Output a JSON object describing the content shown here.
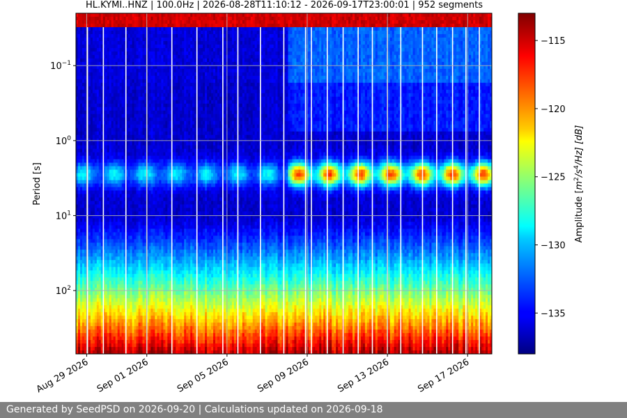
{
  "chart_data": {
    "type": "heatmap",
    "title": "HL.KYMI..HNZ | 100.0Hz | 2026-08-28T11:10:12 - 2026-09-17T23:00:01 | 952 segments",
    "ylabel": "Period [s]",
    "colorbar_label": "Amplitude [m²/s⁴/Hz] [dB]",
    "colorbar_label_parts": {
      "prefix": "Amplitude [",
      "m": "m",
      "sup2": "2",
      "s": "/s",
      "sup4": "4",
      "rest": "/Hz] [dB]"
    },
    "y_scale": "log",
    "y_inverted": true,
    "y_range": [
      0.02,
      700
    ],
    "y_ticks": [
      {
        "value": 0.1,
        "base": "10",
        "exp": "−1"
      },
      {
        "value": 1,
        "base": "10",
        "exp": "0"
      },
      {
        "value": 10,
        "base": "10",
        "exp": "1"
      },
      {
        "value": 100,
        "base": "10",
        "exp": "2"
      }
    ],
    "x_range": [
      "2026-08-28T11:10:12",
      "2026-09-18T05:00:00"
    ],
    "x_ticks": [
      {
        "date": "2026-08-29T00:00:00",
        "label": "Aug 29 2026"
      },
      {
        "date": "2026-09-01T00:00:00",
        "label": "Sep 01 2026"
      },
      {
        "date": "2026-09-05T00:00:00",
        "label": "Sep 05 2026"
      },
      {
        "date": "2026-09-09T00:00:00",
        "label": "Sep 09 2026"
      },
      {
        "date": "2026-09-13T00:00:00",
        "label": "Sep 13 2026"
      },
      {
        "date": "2026-09-17T00:00:00",
        "label": "Sep 17 2026"
      }
    ],
    "colorbar_range": [
      -138,
      -113
    ],
    "colorbar_ticks": [
      -115,
      -120,
      -125,
      -130,
      -135
    ],
    "colormap": "jet",
    "grid": true,
    "data_gaps": [
      "2026-08-29T01:00:00",
      "2026-08-29T20:00:00",
      "2026-08-30T23:00:00",
      "2026-09-01T00:00:00",
      "2026-09-02T06:00:00",
      "2026-09-03T12:00:00",
      "2026-09-04T19:00:00",
      "2026-09-05T13:00:00",
      "2026-09-06T16:00:00",
      "2026-09-07T20:00:00",
      "2026-09-08T22:00:00",
      "2026-09-09T05:00:00",
      "2026-09-10T00:00:00",
      "2026-09-10T19:00:00",
      "2026-09-11T13:00:00",
      "2026-09-12T06:00:00",
      "2026-09-13T00:00:00",
      "2026-09-13T16:00:00",
      "2026-09-14T18:00:00",
      "2026-09-15T11:00:00",
      "2026-09-16T06:00:00",
      "2026-09-16T22:00:00",
      "2026-09-17T14:00:00"
    ]
  },
  "footer": {
    "text": "Generated by SeedPSD on 2026-09-20 | Calculations updated on 2026-09-18"
  }
}
